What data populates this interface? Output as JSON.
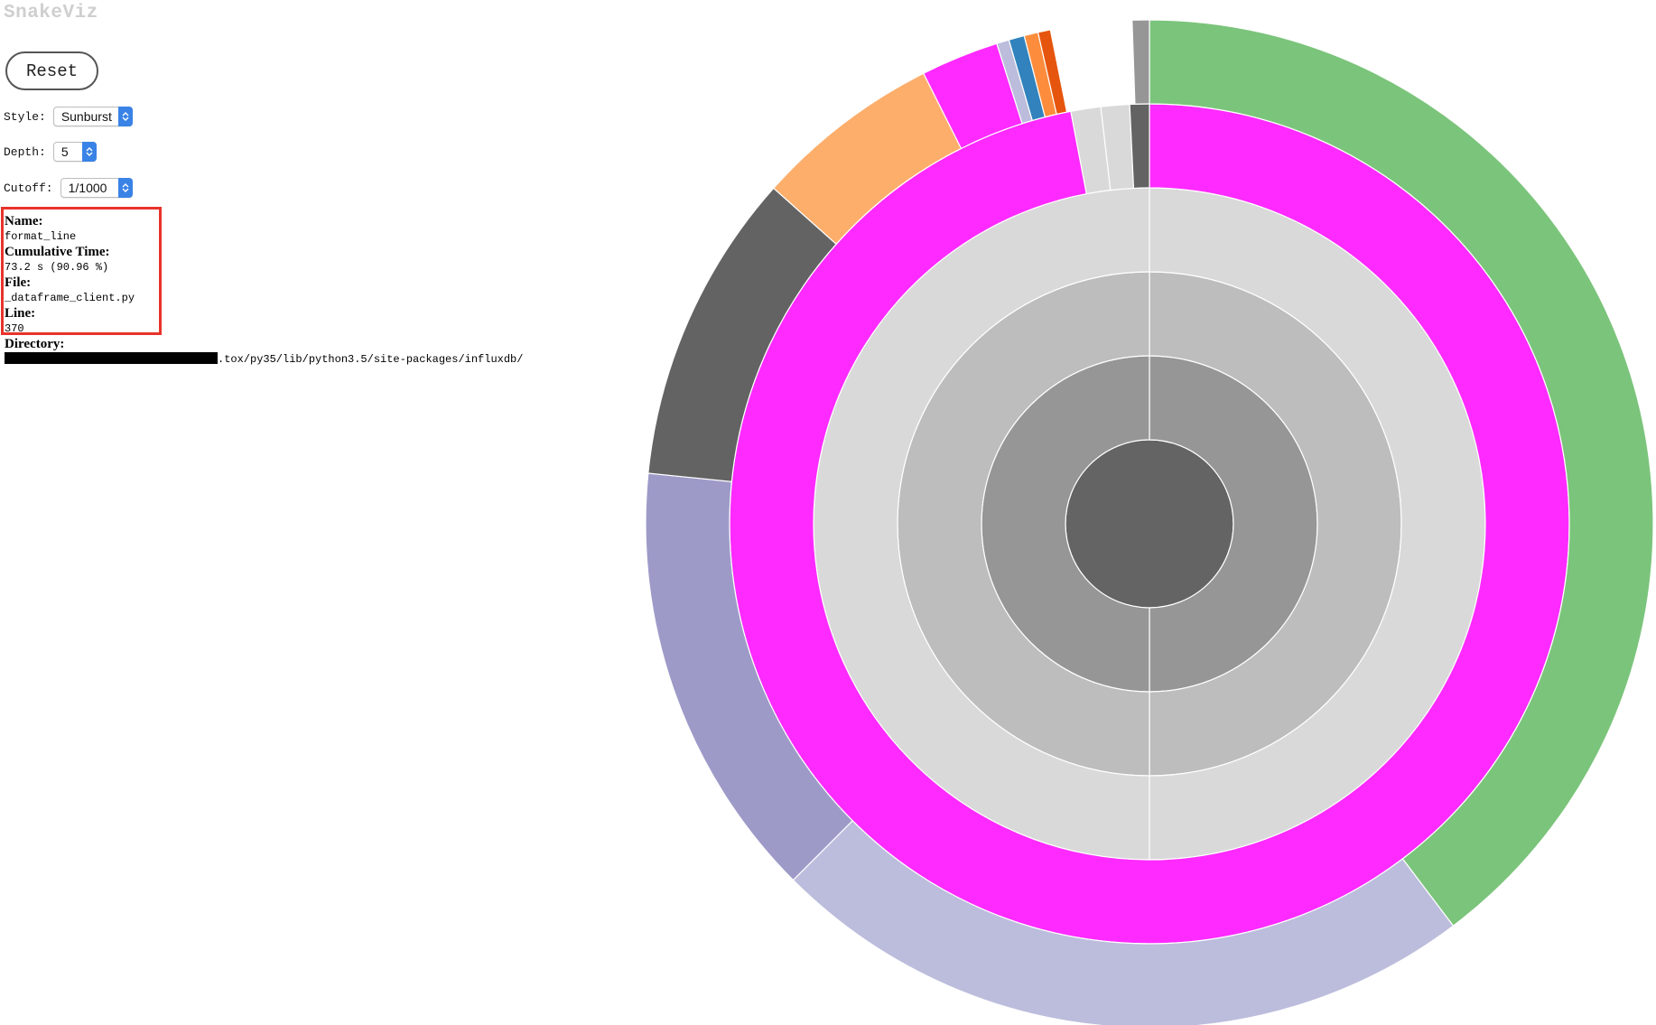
{
  "app": {
    "title": "SnakeViz"
  },
  "controls": {
    "reset_label": "Reset",
    "style_label": "Style:",
    "style_value": "Sunburst",
    "depth_label": "Depth:",
    "depth_value": "5",
    "cutoff_label": "Cutoff:",
    "cutoff_value": "1/1000"
  },
  "info": {
    "name_label": "Name:",
    "name_value": "format_line",
    "cumtime_label": "Cumulative Time:",
    "cumtime_value": "73.2 s (90.96 %)",
    "file_label": "File:",
    "file_value": "_dataframe_client.py",
    "line_label": "Line:",
    "line_value": "370",
    "dir_label": "Directory:",
    "dir_value": ".tox/py35/lib/python3.5/site-packages/influxdb/"
  },
  "colors": {
    "highlight_box": "#e8332a",
    "select_arrow": "#3a83e6"
  },
  "sunburst": {
    "rings": [
      [
        {
          "share": 1.0,
          "color": "#646464"
        }
      ],
      [
        {
          "share": 0.5,
          "color": "#969696"
        },
        {
          "share": 0.5,
          "color": "#969696"
        }
      ],
      [
        {
          "share": 0.5,
          "color": "#bdbdbd"
        },
        {
          "share": 0.5,
          "color": "#bdbdbd"
        }
      ],
      [
        {
          "share": 0.5,
          "color": "#d9d9d9"
        },
        {
          "share": 0.5,
          "color": "#d9d9d9"
        }
      ],
      [
        {
          "share": 0.97,
          "color": "#ff2aff"
        },
        {
          "share": 0.0115,
          "color": "#d9d9d9"
        },
        {
          "share": 0.011,
          "color": "#d9d9d9"
        },
        {
          "share": 0.0075,
          "color": "#636363"
        }
      ],
      [
        {
          "share": 0.397,
          "color": "#7bc47b"
        },
        {
          "share": 0.228,
          "color": "#bcbddc"
        },
        {
          "share": 0.141,
          "color": "#9e9ac8"
        },
        {
          "share": 0.1,
          "color": "#636363"
        },
        {
          "share": 0.06,
          "color": "#fdae6b"
        },
        {
          "share": 0.025,
          "color": "#ff2aff"
        },
        {
          "share": 0.004,
          "color": "#bcbddc"
        },
        {
          "share": 0.005,
          "color": "#3182bd"
        },
        {
          "share": 0.0045,
          "color": "#fd8d3c"
        },
        {
          "share": 0.004,
          "color": "#e6550d"
        },
        {
          "share": 0.026,
          "color": "none"
        },
        {
          "share": 0.0055,
          "color": "#969696"
        }
      ]
    ]
  }
}
